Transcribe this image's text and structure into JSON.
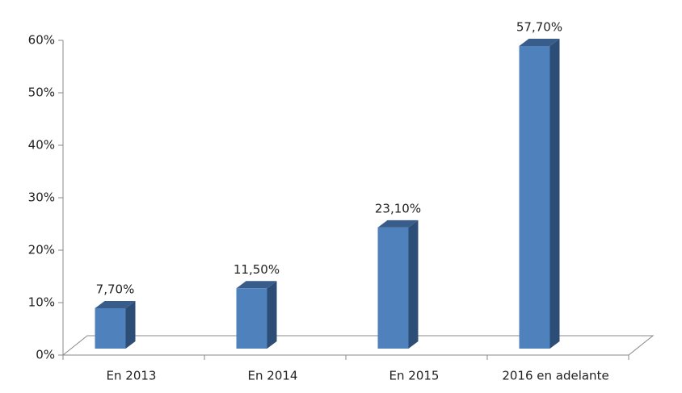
{
  "chart_data": {
    "type": "bar3d",
    "categories": [
      "En 2013",
      "En 2014",
      "En 2015",
      "2016 en adelante"
    ],
    "values": [
      7.7,
      11.5,
      23.1,
      57.7
    ],
    "value_labels": [
      "7,70%",
      "11,50%",
      "23,10%",
      "57,70%"
    ],
    "color": "#4f81bd",
    "ylim": [
      0,
      60
    ],
    "yticks": [
      {
        "value": 0,
        "label": "0%"
      },
      {
        "value": 10,
        "label": "10%"
      },
      {
        "value": 20,
        "label": "20%"
      },
      {
        "value": 30,
        "label": "30%"
      },
      {
        "value": 40,
        "label": "40%"
      },
      {
        "value": 50,
        "label": "50%"
      },
      {
        "value": 60,
        "label": "60%"
      }
    ]
  }
}
